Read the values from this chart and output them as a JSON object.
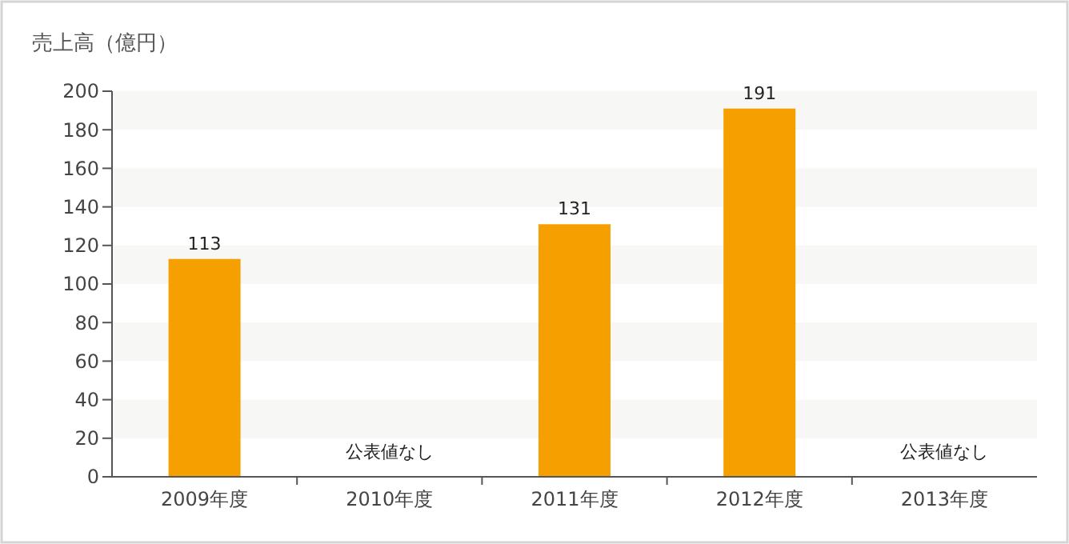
{
  "chart_data": {
    "type": "bar",
    "ylabel": "売上高（億円）",
    "categories": [
      "2009年度",
      "2010年度",
      "2011年度",
      "2012年度",
      "2013年度"
    ],
    "values": [
      113,
      null,
      131,
      191,
      null
    ],
    "value_labels": [
      "113",
      "公表値なし",
      "131",
      "191",
      "公表値なし"
    ],
    "color": "#f5a000",
    "ylim": [
      0,
      200
    ],
    "yticks": [
      0,
      20,
      40,
      60,
      80,
      100,
      120,
      140,
      160,
      180,
      200
    ],
    "bands": [
      {
        "axis": "y",
        "from": 20,
        "to": 40,
        "color": "#f7f7f5"
      },
      {
        "axis": "y",
        "from": 60,
        "to": 80,
        "color": "#f7f7f5"
      },
      {
        "axis": "y",
        "from": 100,
        "to": 120,
        "color": "#f7f7f5"
      },
      {
        "axis": "y",
        "from": 140,
        "to": 160,
        "color": "#f7f7f5"
      },
      {
        "axis": "y",
        "from": 180,
        "to": 200,
        "color": "#f7f7f5"
      }
    ]
  }
}
